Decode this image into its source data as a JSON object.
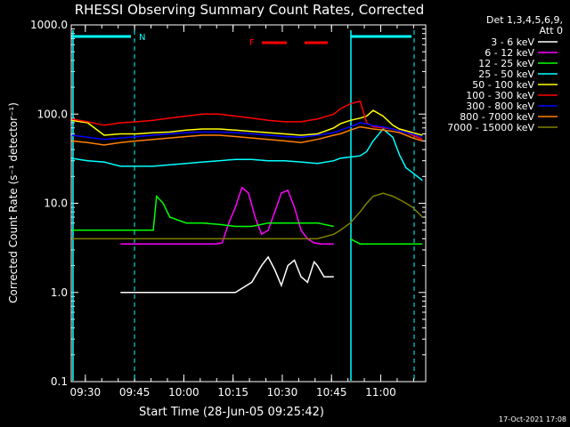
{
  "chart_data": {
    "type": "line",
    "title": "RHESSI Observing Summary Count Rates, Corrected",
    "xlabel": "Start Time (28-Jun-05 09:25:42)",
    "ylabel": "Corrected Count Rate (s⁻¹ detector⁻¹)",
    "y_scale": "log",
    "ylim": [
      0.1,
      1000
    ],
    "xlim_minutes": [
      0,
      108
    ],
    "x_ticks": [
      {
        "label": "09:30",
        "minute": 4.3
      },
      {
        "label": "09:45",
        "minute": 19.3
      },
      {
        "label": "10:00",
        "minute": 34.3
      },
      {
        "label": "10:15",
        "minute": 49.3
      },
      {
        "label": "10:30",
        "minute": 64.3
      },
      {
        "label": "10:45",
        "minute": 79.3
      },
      {
        "label": "11:00",
        "minute": 94.3
      }
    ],
    "y_ticks": [
      {
        "label": "0.1",
        "value": 0.1
      },
      {
        "label": "1.0",
        "value": 1
      },
      {
        "label": "10.0",
        "value": 10
      },
      {
        "label": "100.0",
        "value": 100
      },
      {
        "label": "1000.0",
        "value": 1000
      }
    ],
    "legend_header": [
      "Det 1,3,4,5,6,9,",
      "Att 0"
    ],
    "series": [
      {
        "name": "3 - 6 keV",
        "color": "#ffffff",
        "x": [
          0,
          5,
          10,
          15,
          18,
          20,
          25,
          30,
          35,
          40,
          45,
          50,
          55,
          58,
          60,
          62,
          64,
          66,
          68,
          70,
          72,
          74,
          75,
          77,
          80,
          82,
          85,
          88,
          90,
          95,
          100,
          104,
          107
        ],
        "values": [
          null,
          null,
          null,
          1,
          1,
          1,
          1,
          1,
          1,
          1,
          1,
          1,
          1.3,
          2,
          2.5,
          1.8,
          1.2,
          2,
          2.3,
          1.5,
          1.3,
          2.2,
          2,
          1.5,
          1.5,
          null,
          null,
          null,
          null,
          null,
          null,
          null,
          null
        ]
      },
      {
        "name": "6 - 12 keV",
        "color": "#ff00ff",
        "x": [
          0,
          5,
          10,
          15,
          18,
          20,
          25,
          30,
          35,
          40,
          44,
          46,
          48,
          50,
          52,
          54,
          56,
          58,
          60,
          62,
          64,
          66,
          68,
          70,
          72,
          74,
          76,
          78,
          80,
          82,
          85,
          88,
          90,
          95,
          100,
          104,
          107
        ],
        "values": [
          null,
          null,
          null,
          3.5,
          3.5,
          3.5,
          3.5,
          3.5,
          3.5,
          3.5,
          3.5,
          3.6,
          6,
          9,
          15,
          13,
          7,
          4.5,
          5,
          8,
          13,
          14,
          9,
          5,
          4,
          3.6,
          3.5,
          3.5,
          3.5,
          null,
          null,
          null,
          null,
          null,
          null,
          null,
          null
        ]
      },
      {
        "name": "12 - 25 keV",
        "color": "#00ff00",
        "x": [
          0,
          5,
          10,
          15,
          20,
          25,
          26,
          28,
          30,
          35,
          40,
          45,
          50,
          55,
          60,
          65,
          70,
          75,
          80,
          82,
          85,
          88,
          90,
          95,
          100,
          104,
          107
        ],
        "values": [
          5,
          5,
          5,
          5,
          5,
          5,
          12,
          10,
          7,
          6,
          6,
          5.8,
          5.5,
          5.5,
          6,
          6,
          6,
          6,
          5.5,
          null,
          4,
          3.5,
          3.5,
          3.5,
          3.5,
          3.5,
          3.5
        ]
      },
      {
        "name": "25 - 50 keV",
        "color": "#00ffff",
        "x": [
          0,
          5,
          10,
          15,
          20,
          25,
          30,
          35,
          40,
          45,
          50,
          55,
          60,
          65,
          70,
          75,
          80,
          82,
          85,
          88,
          90,
          92,
          95,
          98,
          100,
          102,
          104,
          107
        ],
        "values": [
          32,
          30,
          29,
          26,
          26,
          26,
          27,
          28,
          29,
          30,
          31,
          31,
          30,
          30,
          29,
          28,
          30,
          32,
          33,
          34,
          38,
          50,
          68,
          55,
          35,
          25,
          22,
          18
        ]
      },
      {
        "name": "50 - 100 keV",
        "color": "#ffff00",
        "x": [
          0,
          5,
          10,
          15,
          20,
          25,
          30,
          35,
          40,
          45,
          50,
          55,
          60,
          65,
          70,
          75,
          80,
          82,
          85,
          88,
          90,
          92,
          95,
          98,
          100,
          102,
          104,
          107
        ],
        "values": [
          85,
          80,
          58,
          60,
          60,
          62,
          63,
          66,
          68,
          68,
          66,
          64,
          62,
          60,
          58,
          60,
          70,
          78,
          85,
          90,
          95,
          110,
          95,
          75,
          68,
          65,
          62,
          58
        ]
      },
      {
        "name": "100 - 300 keV",
        "color": "#ff0000",
        "x": [
          0,
          5,
          10,
          15,
          20,
          25,
          30,
          35,
          40,
          45,
          50,
          55,
          60,
          65,
          70,
          75,
          80,
          82,
          85,
          88,
          90,
          92,
          95,
          98,
          100,
          102,
          104,
          107
        ],
        "values": [
          88,
          82,
          75,
          80,
          82,
          85,
          90,
          95,
          100,
          100,
          95,
          90,
          85,
          82,
          82,
          88,
          100,
          115,
          130,
          140,
          80,
          72,
          70,
          68,
          65,
          62,
          58,
          52
        ]
      },
      {
        "name": "300 - 800 keV",
        "color": "#0000ff",
        "x": [
          0,
          5,
          10,
          15,
          20,
          25,
          30,
          35,
          40,
          45,
          50,
          55,
          60,
          65,
          70,
          75,
          80,
          82,
          85,
          88,
          90,
          92,
          95,
          98,
          100,
          102,
          104,
          107
        ],
        "values": [
          58,
          55,
          52,
          54,
          56,
          58,
          60,
          62,
          63,
          63,
          62,
          60,
          58,
          56,
          55,
          58,
          62,
          66,
          72,
          80,
          78,
          74,
          72,
          68,
          65,
          62,
          60,
          55
        ]
      },
      {
        "name": "800 - 7000 keV",
        "color": "#ff8000",
        "x": [
          0,
          5,
          10,
          15,
          20,
          25,
          30,
          35,
          40,
          45,
          50,
          55,
          60,
          65,
          70,
          75,
          80,
          82,
          85,
          88,
          90,
          92,
          95,
          98,
          100,
          102,
          104,
          107
        ],
        "values": [
          50,
          48,
          45,
          48,
          50,
          52,
          54,
          56,
          58,
          58,
          56,
          54,
          52,
          50,
          48,
          52,
          58,
          60,
          66,
          72,
          70,
          68,
          66,
          64,
          62,
          58,
          54,
          50
        ]
      },
      {
        "name": "7000 - 15000 keV",
        "color": "#808000",
        "x": [
          0,
          5,
          10,
          15,
          20,
          25,
          30,
          35,
          40,
          45,
          50,
          55,
          60,
          65,
          70,
          75,
          80,
          82,
          85,
          88,
          90,
          92,
          95,
          98,
          100,
          102,
          104,
          107
        ],
        "values": [
          4,
          4,
          4,
          4,
          4,
          4,
          4,
          4,
          4,
          4,
          4,
          4,
          4,
          4,
          4,
          4,
          4.5,
          5,
          6,
          8,
          10,
          12,
          13,
          12,
          11,
          10,
          9,
          7
        ]
      }
    ],
    "annotations": [
      {
        "label": "N",
        "color": "#00ffff"
      },
      {
        "label": "F",
        "color": "#ff0000"
      }
    ],
    "footer_date": "17-Oct-2021 17:08"
  }
}
